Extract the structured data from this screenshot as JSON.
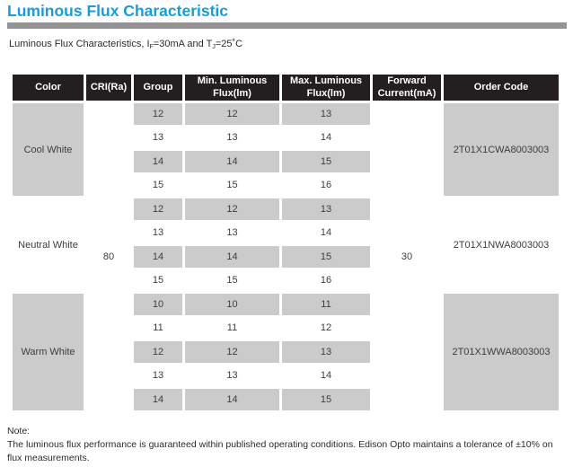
{
  "title": "Luminous Flux Characteristic",
  "subtitle": {
    "text_1": "Luminous Flux Characteristics, I",
    "sub_1": "F",
    "text_2": "=30mA and T",
    "sub_2": "J",
    "text_3": "=25˚C"
  },
  "colors": {
    "accent_blue": "#1b9cd8",
    "divider_gray": "#949494",
    "header_bg": "#231f20",
    "cell_gray": "#cbcbcb"
  },
  "table": {
    "headers": [
      "Color",
      "CRI(Ra)",
      "Group",
      "Min. Luminous Flux(lm)",
      "Max. Luminous Flux(lm)",
      "Forward Current(mA)",
      "Order Code"
    ],
    "cri": "80",
    "forward_current": "30",
    "groups": [
      {
        "color": "Cool White",
        "order_code": "2T01X1CWA8003003",
        "shaded": true,
        "rows": [
          {
            "group": "12",
            "min": "12",
            "max": "13"
          },
          {
            "group": "13",
            "min": "13",
            "max": "14"
          },
          {
            "group": "14",
            "min": "14",
            "max": "15"
          },
          {
            "group": "15",
            "min": "15",
            "max": "16"
          }
        ]
      },
      {
        "color": "Neutral White",
        "order_code": "2T01X1NWA8003003",
        "shaded": false,
        "rows": [
          {
            "group": "12",
            "min": "12",
            "max": "13"
          },
          {
            "group": "13",
            "min": "13",
            "max": "14"
          },
          {
            "group": "14",
            "min": "14",
            "max": "15"
          },
          {
            "group": "15",
            "min": "15",
            "max": "16"
          }
        ]
      },
      {
        "color": "Warm White",
        "order_code": "2T01X1WWA8003003",
        "shaded": true,
        "rows": [
          {
            "group": "10",
            "min": "10",
            "max": "11"
          },
          {
            "group": "11",
            "min": "11",
            "max": "12"
          },
          {
            "group": "12",
            "min": "12",
            "max": "13"
          },
          {
            "group": "13",
            "min": "13",
            "max": "14"
          },
          {
            "group": "14",
            "min": "14",
            "max": "15"
          }
        ]
      }
    ]
  },
  "note": {
    "label": "Note:",
    "body": "The luminous flux performance is guaranteed within published operating conditions.  Edison Opto maintains a tolerance of ±10% on flux measurements."
  }
}
